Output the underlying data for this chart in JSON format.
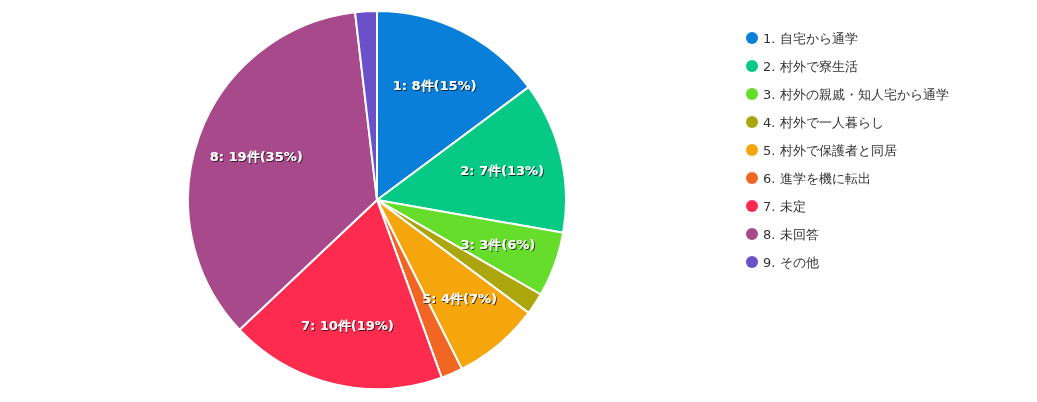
{
  "chart_data": {
    "type": "pie",
    "categories": [
      "1. 自宅から通学",
      "2. 村外で寮生活",
      "3. 村外の親戚・知人宅から通学",
      "4. 村外で一人暮らし",
      "5. 村外で保護者と同居",
      "6. 進学を機に転出",
      "7. 未定",
      "8. 未回答",
      "9. その他"
    ],
    "values": [
      8,
      7,
      3,
      1,
      4,
      1,
      10,
      19,
      1
    ],
    "value_labels": [
      "1: 8件(15%)",
      "2: 7件(13%)",
      "3: 3件(6%)",
      null,
      "5: 4件(7%)",
      null,
      "7: 10件(19%)",
      "8: 19件(35%)",
      null
    ],
    "colors": [
      "#0a7fd9",
      "#05c985",
      "#66dd2a",
      "#aaa60c",
      "#f4a60c",
      "#f26624",
      "#fd2c4f",
      "#a8498b",
      "#6a50c9"
    ],
    "legend": "right"
  }
}
